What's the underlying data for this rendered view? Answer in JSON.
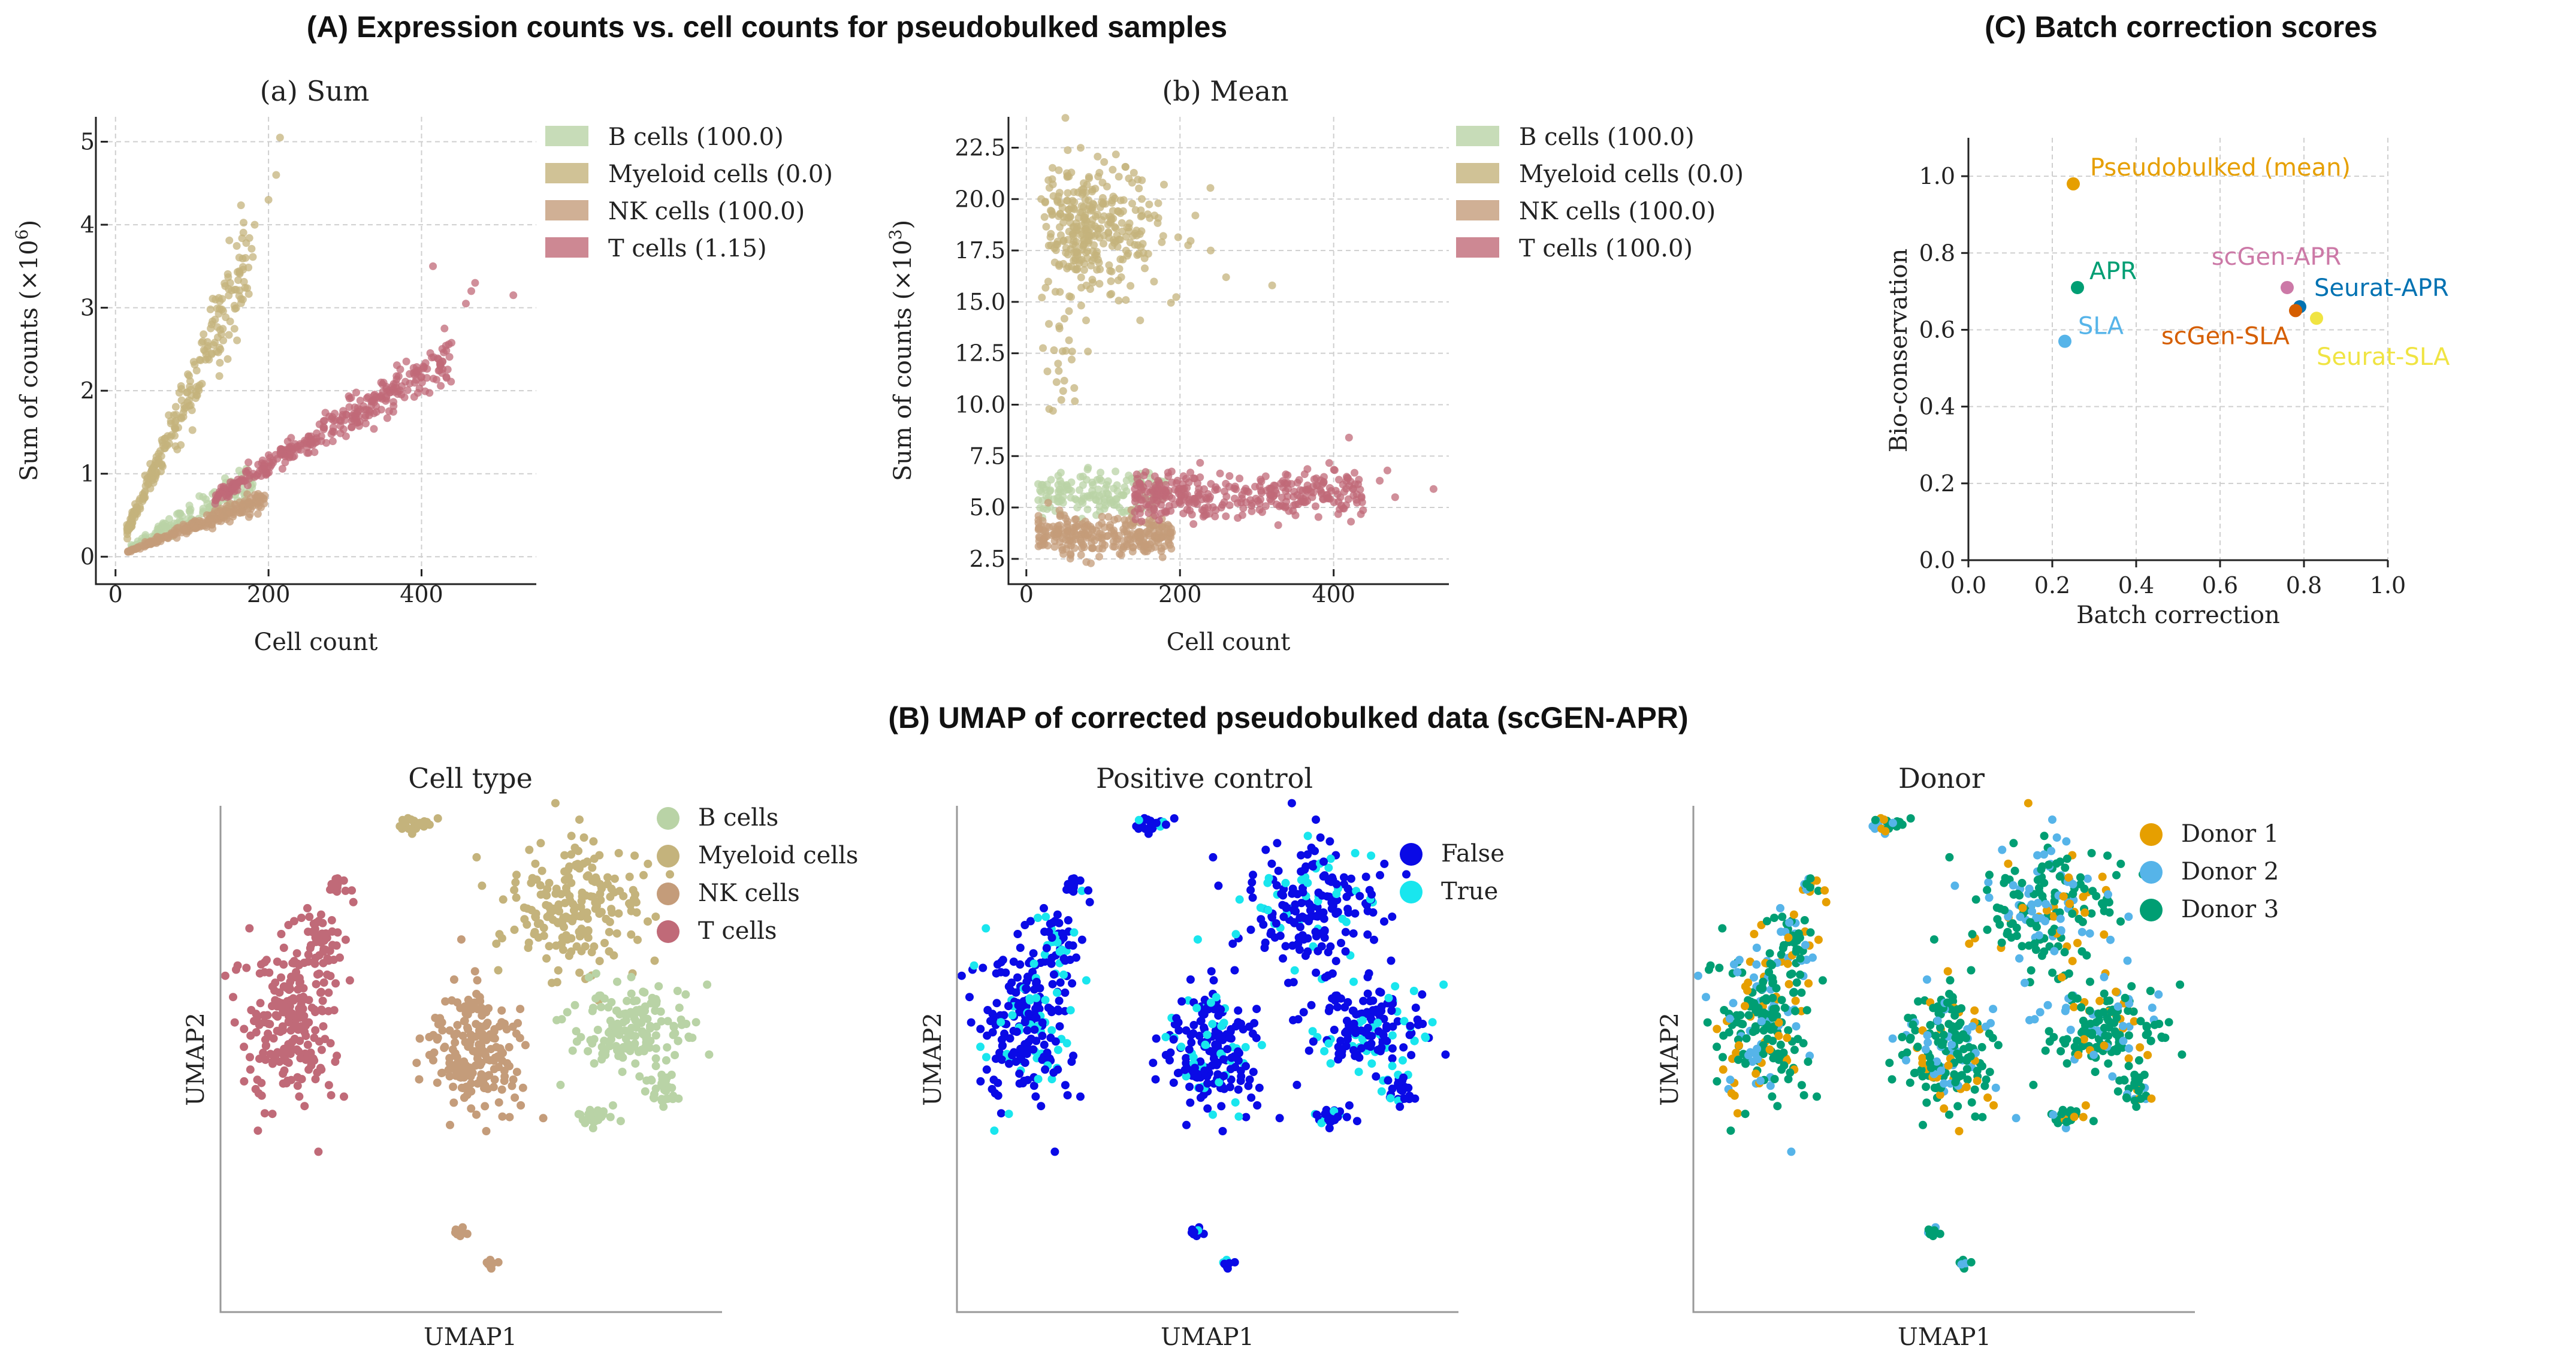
{
  "titles": {
    "A": "(A) Expression counts vs. cell counts for pseudobulked samples",
    "B": "(B) UMAP of corrected pseudobulked data (scGEN-APR)",
    "C": "(C) Batch correction scores"
  },
  "colors": {
    "b_cells": "#b9d3a6",
    "myeloid": "#c4b37c",
    "nk": "#c49c7a",
    "t_cells": "#c06a78",
    "false_blue": "#0a0ae6",
    "true_cyan": "#19e6ee",
    "donor1": "#e69f00",
    "donor2": "#56b4e9",
    "donor3": "#009e73"
  },
  "chart_data": [
    {
      "id": "sum",
      "type": "scatter",
      "title": "(a) Sum",
      "xlabel": "Cell count",
      "ylabel": "Sum of counts (×10⁶)",
      "xlim": [
        -10,
        550
      ],
      "ylim": [
        -0.15,
        5.3
      ],
      "xticks": [
        0,
        200,
        400
      ],
      "yticks": [
        0,
        1,
        2,
        3,
        4,
        5
      ],
      "grid": true,
      "legend_position": "right",
      "series": [
        {
          "name": "B cells (100.0)",
          "key": "b_cells",
          "approx_points": [
            [
              30,
              0.2
            ],
            [
              60,
              0.38
            ],
            [
              90,
              0.55
            ],
            [
              110,
              0.7
            ],
            [
              130,
              0.8
            ],
            [
              150,
              0.9
            ],
            [
              170,
              0.75
            ]
          ]
        },
        {
          "name": "Myeloid cells (0.0)",
          "key": "myeloid",
          "approx_points": [
            [
              20,
              0.3
            ],
            [
              50,
              0.9
            ],
            [
              80,
              1.5
            ],
            [
              110,
              2.2
            ],
            [
              140,
              3.0
            ],
            [
              160,
              3.5
            ],
            [
              180,
              4.5
            ],
            [
              210,
              5.05
            ]
          ]
        },
        {
          "name": "NK cells (100.0)",
          "key": "nk",
          "approx_points": [
            [
              20,
              0.1
            ],
            [
              60,
              0.25
            ],
            [
              100,
              0.38
            ],
            [
              140,
              0.5
            ],
            [
              180,
              0.7
            ]
          ]
        },
        {
          "name": "T cells (1.15)",
          "key": "t_cells",
          "approx_points": [
            [
              150,
              0.7
            ],
            [
              200,
              1.05
            ],
            [
              250,
              1.4
            ],
            [
              300,
              1.8
            ],
            [
              350,
              2.1
            ],
            [
              400,
              2.4
            ],
            [
              450,
              3.1
            ],
            [
              530,
              3.15
            ]
          ]
        }
      ]
    },
    {
      "id": "mean",
      "type": "scatter",
      "title": "(b) Mean",
      "xlabel": "Cell count",
      "ylabel": "Sum of counts (×10³)",
      "xlim": [
        -10,
        550
      ],
      "ylim": [
        2.0,
        24.0
      ],
      "xticks": [
        0,
        200,
        400
      ],
      "yticks": [
        2.5,
        5.0,
        7.5,
        10.0,
        12.5,
        15.0,
        17.5,
        20.0,
        22.5
      ],
      "grid": true,
      "legend_position": "right",
      "series": [
        {
          "name": "B cells (100.0)",
          "key": "b_cells",
          "approx_points": [
            [
              30,
              5.5
            ],
            [
              70,
              6.0
            ],
            [
              100,
              6.3
            ],
            [
              150,
              5.8
            ],
            [
              180,
              5.5
            ]
          ]
        },
        {
          "name": "Myeloid cells (0.0)",
          "key": "myeloid",
          "approx_points": [
            [
              20,
              20
            ],
            [
              60,
              19
            ],
            [
              90,
              18.5
            ],
            [
              130,
              17
            ],
            [
              200,
              16
            ],
            [
              320,
              15.8
            ]
          ]
        },
        {
          "name": "NK cells (100.0)",
          "key": "nk",
          "approx_points": [
            [
              30,
              4.0
            ],
            [
              70,
              3.8
            ],
            [
              110,
              3.5
            ],
            [
              150,
              3.5
            ],
            [
              180,
              3.8
            ]
          ]
        },
        {
          "name": "T cells (100.0)",
          "key": "t_cells",
          "approx_points": [
            [
              150,
              5.2
            ],
            [
              200,
              5.5
            ],
            [
              260,
              5.8
            ],
            [
              320,
              5.6
            ],
            [
              400,
              6.2
            ],
            [
              460,
              6.5
            ],
            [
              530,
              5.9
            ]
          ]
        }
      ]
    },
    {
      "id": "batch",
      "type": "scatter",
      "title": "",
      "xlabel": "Batch correction",
      "ylabel": "Bio-conservation",
      "xlim": [
        0.0,
        1.0
      ],
      "ylim": [
        0.0,
        1.1
      ],
      "xticks": [
        0.0,
        0.2,
        0.4,
        0.6,
        0.8,
        1.0
      ],
      "yticks": [
        0.0,
        0.2,
        0.4,
        0.6,
        0.8,
        1.0
      ],
      "grid": true,
      "points": [
        {
          "label": "Pseudobulked (mean)",
          "x": 0.25,
          "y": 0.98,
          "color": "#e69f00"
        },
        {
          "label": "APR",
          "x": 0.26,
          "y": 0.71,
          "color": "#009e73"
        },
        {
          "label": "SLA",
          "x": 0.23,
          "y": 0.57,
          "color": "#56b4e9"
        },
        {
          "label": "scGen-APR",
          "x": 0.76,
          "y": 0.71,
          "color": "#cc79a7"
        },
        {
          "label": "Seurat-APR",
          "x": 0.79,
          "y": 0.66,
          "color": "#0072b2"
        },
        {
          "label": "scGen-SLA",
          "x": 0.78,
          "y": 0.65,
          "color": "#d55e00"
        },
        {
          "label": "Seurat-SLA",
          "x": 0.83,
          "y": 0.63,
          "color": "#f0e442"
        }
      ]
    }
  ],
  "umap": {
    "xlabel": "UMAP1",
    "ylabel": "UMAP2",
    "panels": [
      {
        "id": "celltype",
        "title": "Cell type",
        "legend": [
          "B cells",
          "Myeloid cells",
          "NK cells",
          "T cells"
        ]
      },
      {
        "id": "posctrl",
        "title": "Positive control",
        "legend": [
          "False",
          "True"
        ]
      },
      {
        "id": "donor",
        "title": "Donor",
        "legend": [
          "Donor 1",
          "Donor 2",
          "Donor 3"
        ]
      }
    ]
  }
}
